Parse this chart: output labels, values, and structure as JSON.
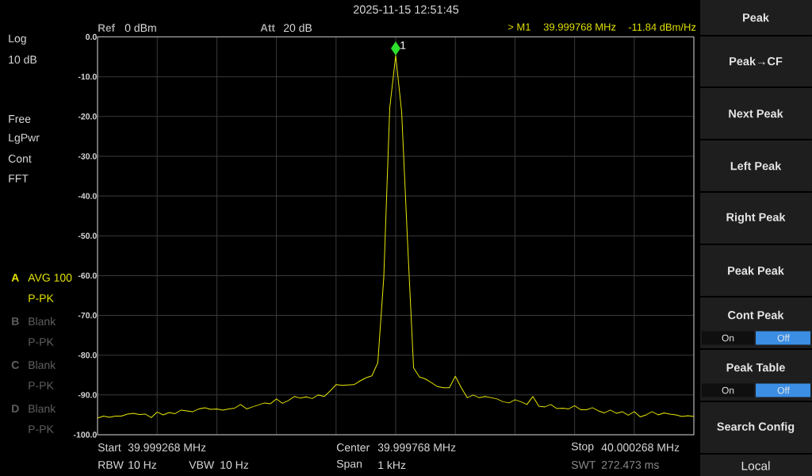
{
  "chart_data": {
    "type": "line",
    "categories": [
      null,
      null,
      null,
      null,
      null,
      null,
      null,
      null,
      null,
      null,
      null,
      null,
      null,
      null,
      null,
      null,
      null,
      null,
      null,
      null,
      null,
      null,
      null,
      null,
      null,
      null,
      null,
      null,
      null,
      null,
      null,
      null,
      null,
      null,
      null,
      null,
      null,
      null,
      null,
      null,
      null,
      null,
      null,
      null,
      null,
      null,
      null,
      null,
      null,
      null,
      null,
      null,
      null,
      null,
      null,
      null,
      null,
      null,
      null,
      null,
      null,
      null,
      null,
      null,
      null,
      null,
      null,
      null,
      null,
      null,
      null,
      null,
      null,
      null,
      null,
      null,
      null,
      null,
      null,
      null,
      null,
      null,
      null,
      null,
      null,
      null,
      null,
      null,
      null,
      null,
      null,
      null,
      null,
      null,
      null,
      null,
      null,
      null,
      null,
      null,
      null
    ],
    "series": [
      {
        "color": "#e8e800",
        "values": [
          -95.8,
          -95.3,
          -95.6,
          -95.3,
          -95.3,
          -94.8,
          -94.6,
          -94.9,
          -94.8,
          -95.7,
          -94.3,
          -95.0,
          -94.4,
          -94.7,
          -93.8,
          -94.0,
          -94.2,
          -93.5,
          -93.2,
          -93.6,
          -93.5,
          -93.8,
          -93.5,
          -93.3,
          -92.4,
          -93.5,
          -93.0,
          -92.5,
          -92.0,
          -92.2,
          -91.0,
          -92.1,
          -91.4,
          -90.4,
          -90.8,
          -90.5,
          -90.9,
          -90.0,
          -90.4,
          -89.0,
          -87.4,
          -87.6,
          -87.5,
          -87.4,
          -86.5,
          -85.7,
          -85.2,
          -81.9,
          -60.5,
          -17.9,
          -4.7,
          -18.9,
          -51.9,
          -83.2,
          -85.5,
          -86.0,
          -86.9,
          -87.9,
          -88.2,
          -88.2,
          -85.3,
          -88.2,
          -90.7,
          -90.0,
          -90.7,
          -90.4,
          -90.7,
          -91.0,
          -91.7,
          -92.0,
          -91.2,
          -91.7,
          -92.4,
          -90.4,
          -92.8,
          -93.0,
          -92.4,
          -93.4,
          -93.3,
          -93.5,
          -92.7,
          -93.7,
          -93.7,
          -93.2,
          -94.0,
          -94.5,
          -93.8,
          -94.6,
          -94.2,
          -95.1,
          -94.2,
          -95.5,
          -95.0,
          -94.2,
          -95.0,
          -94.5,
          -94.8,
          -95.0,
          -95.4,
          -95.2,
          -95.4
        ]
      },
      {
        "type": "scatter",
        "marker": "diamond",
        "color": "#2ee02e",
        "values": [
          null,
          null,
          null,
          null,
          null,
          null,
          null,
          null,
          null,
          null,
          null,
          null,
          null,
          null,
          null,
          null,
          null,
          null,
          null,
          null,
          null,
          null,
          null,
          null,
          null,
          null,
          null,
          null,
          null,
          null,
          null,
          null,
          null,
          null,
          null,
          null,
          null,
          null,
          null,
          null,
          null,
          null,
          null,
          null,
          null,
          null,
          null,
          null,
          null,
          null,
          -2.9,
          null,
          null,
          null,
          null,
          null,
          null,
          null,
          null,
          null,
          null,
          null,
          null,
          null,
          null,
          null,
          null,
          null,
          null,
          null,
          null,
          null,
          null,
          null,
          null,
          null,
          null,
          null,
          null,
          null,
          null,
          null,
          null,
          null,
          null,
          null,
          null,
          null,
          null,
          null,
          null,
          null,
          null,
          null,
          null,
          null,
          null,
          null,
          null,
          null,
          null
        ]
      }
    ],
    "ylim": [
      -100,
      0
    ],
    "yticks": [
      {
        "value": 0,
        "label": "0.0"
      },
      {
        "value": -10,
        "label": "-10.0"
      },
      {
        "value": -20,
        "label": "-20.0"
      },
      {
        "value": -30,
        "label": "-30.0"
      },
      {
        "value": -40,
        "label": "-40.0"
      },
      {
        "value": -50,
        "label": "-50.0"
      },
      {
        "value": -60,
        "label": "-60.0"
      },
      {
        "value": -70,
        "label": "-70.0"
      },
      {
        "value": -80,
        "label": "-80.0"
      },
      {
        "value": -90,
        "label": "-90.0"
      },
      {
        "value": -100,
        "label": "-100.0"
      }
    ],
    "grid": true,
    "tick_labels": "y",
    "annotations": [
      "2025-11-15 12:51:45",
      "Ref",
      "0 dBm",
      "Att",
      "20 dB",
      "> M1",
      "39.999768 MHz",
      "-11.84 dBm/Hz",
      {
        "text": "1",
        "y": -2.9
      },
      "Log",
      "10 dB",
      "Free",
      "LgPwr",
      "Cont",
      "FFT",
      "A",
      "AVG 100",
      "P-PK",
      "B",
      "Blank",
      "P-PK",
      "C",
      "Blank",
      "P-PK",
      "D",
      "Blank",
      "P-PK",
      "Start",
      "39.999268 MHz",
      "Center",
      "39.999768 MHz",
      "Stop",
      "40.000268 MHz",
      "RBW",
      "10 Hz",
      "VBW",
      "10 Hz",
      "Span",
      "1 kHz",
      "SWT",
      "272.473 ms",
      "Peak",
      "Peak→CF",
      "Next Peak",
      "Left Peak",
      "Right Peak",
      "Peak Peak",
      "Cont Peak",
      "On",
      "Off",
      "Peak Table",
      "On",
      "Off",
      "Search Config",
      "Local"
    ]
  }
}
